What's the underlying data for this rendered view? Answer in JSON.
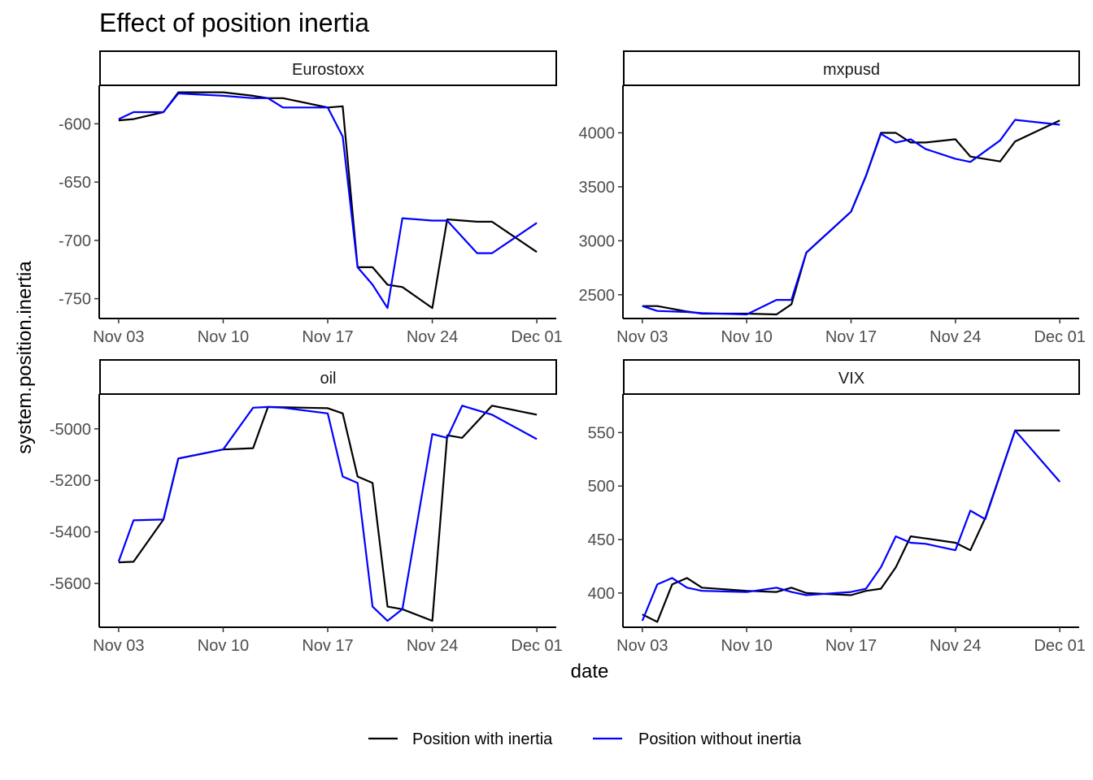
{
  "chart_data": {
    "type": "line",
    "title": "Effect of position inertia",
    "xlabel": "date",
    "ylabel": "system.position.inertia",
    "x_ticks": [
      "Nov 03",
      "Nov 10",
      "Nov 17",
      "Nov 24",
      "Dec 01"
    ],
    "x_tick_days": [
      3,
      10,
      17,
      24,
      31
    ],
    "xlim_days": [
      1.7,
      32.3
    ],
    "legend": {
      "position": "bottom",
      "entries": [
        {
          "name": "Position with inertia",
          "color": "#000000"
        },
        {
          "name": "Position without inertia",
          "color": "#0000ff"
        }
      ]
    },
    "panels": [
      {
        "name": "Eurostoxx",
        "ylim": [
          -767,
          -567
        ],
        "yticks": [
          -600,
          -650,
          -700,
          -750
        ],
        "x": [
          3,
          4,
          6,
          7,
          10,
          12,
          13,
          14,
          17,
          18,
          19,
          20,
          21,
          22,
          24,
          25,
          27,
          28,
          31
        ],
        "series": [
          {
            "name": "Position with inertia",
            "values": [
              -597,
              -596,
              -590,
              -573,
              -573,
              -576,
              -578,
              -578,
              -586,
              -585,
              -723,
              -723,
              -738,
              -740,
              -758,
              -682,
              -684,
              -684,
              -710
            ]
          },
          {
            "name": "Position without inertia",
            "values": [
              -596,
              -590,
              -590,
              -574,
              -576,
              -578,
              -578,
              -586,
              -586,
              -611,
              -723,
              -738,
              -758,
              -681,
              -683,
              -683,
              -711,
              -711,
              -685
            ]
          }
        ]
      },
      {
        "name": "mxpusd",
        "ylim": [
          2280,
          4440
        ],
        "yticks": [
          2500,
          3000,
          3500,
          4000
        ],
        "x": [
          3,
          4,
          6,
          7,
          10,
          12,
          13,
          14,
          17,
          18,
          19,
          20,
          21,
          22,
          24,
          25,
          27,
          28,
          31
        ],
        "series": [
          {
            "name": "Position with inertia",
            "values": [
              2395,
              2395,
              2345,
              2325,
              2325,
              2318,
              2412,
              2890,
              3270,
              3600,
              4000,
              4000,
              3910,
              3910,
              3940,
              3780,
              3735,
              3920,
              4115
            ]
          },
          {
            "name": "Position without inertia",
            "values": [
              2395,
              2350,
              2340,
              2330,
              2318,
              2452,
              2452,
              2890,
              3270,
              3600,
              3990,
              3910,
              3940,
              3850,
              3760,
              3730,
              3930,
              4120,
              4075
            ]
          }
        ]
      },
      {
        "name": "oil",
        "ylim": [
          -5770,
          -4865
        ],
        "yticks": [
          -5000,
          -5200,
          -5400,
          -5600
        ],
        "x": [
          3,
          4,
          6,
          7,
          10,
          12,
          13,
          14,
          17,
          18,
          19,
          20,
          21,
          22,
          24,
          25,
          26,
          28,
          31
        ],
        "series": [
          {
            "name": "Position with inertia",
            "values": [
              -5518,
              -5516,
              -5352,
              -5115,
              -5080,
              -5075,
              -4915,
              -4916,
              -4920,
              -4940,
              -5185,
              -5210,
              -5690,
              -5700,
              -5745,
              -5025,
              -5035,
              -4910,
              -4945
            ]
          },
          {
            "name": "Position without inertia",
            "values": [
              -5515,
              -5355,
              -5352,
              -5115,
              -5080,
              -4918,
              -4915,
              -4918,
              -4940,
              -5185,
              -5210,
              -5690,
              -5745,
              -5700,
              -5020,
              -5035,
              -4910,
              -4945,
              -5040
            ]
          }
        ]
      },
      {
        "name": "VIX",
        "ylim": [
          368,
          586
        ],
        "yticks": [
          400,
          450,
          500,
          550
        ],
        "x": [
          3,
          4,
          5,
          6,
          7,
          10,
          12,
          13,
          14,
          17,
          18,
          19,
          20,
          21,
          22,
          24,
          25,
          26,
          28,
          31
        ],
        "series": [
          {
            "name": "Position with inertia",
            "values": [
              380,
              373,
              408,
              414,
              405,
              402,
              401,
              405,
              400,
              398,
              402,
              404,
              424,
              453,
              451,
              447,
              440,
              470,
              552,
              552
            ]
          },
          {
            "name": "Position without inertia",
            "values": [
              374,
              408,
              414,
              405,
              402,
              401,
              405,
              401,
              398,
              401,
              404,
              424,
              453,
              447,
              446,
              440,
              477,
              469,
              552,
              504
            ]
          }
        ]
      }
    ]
  }
}
